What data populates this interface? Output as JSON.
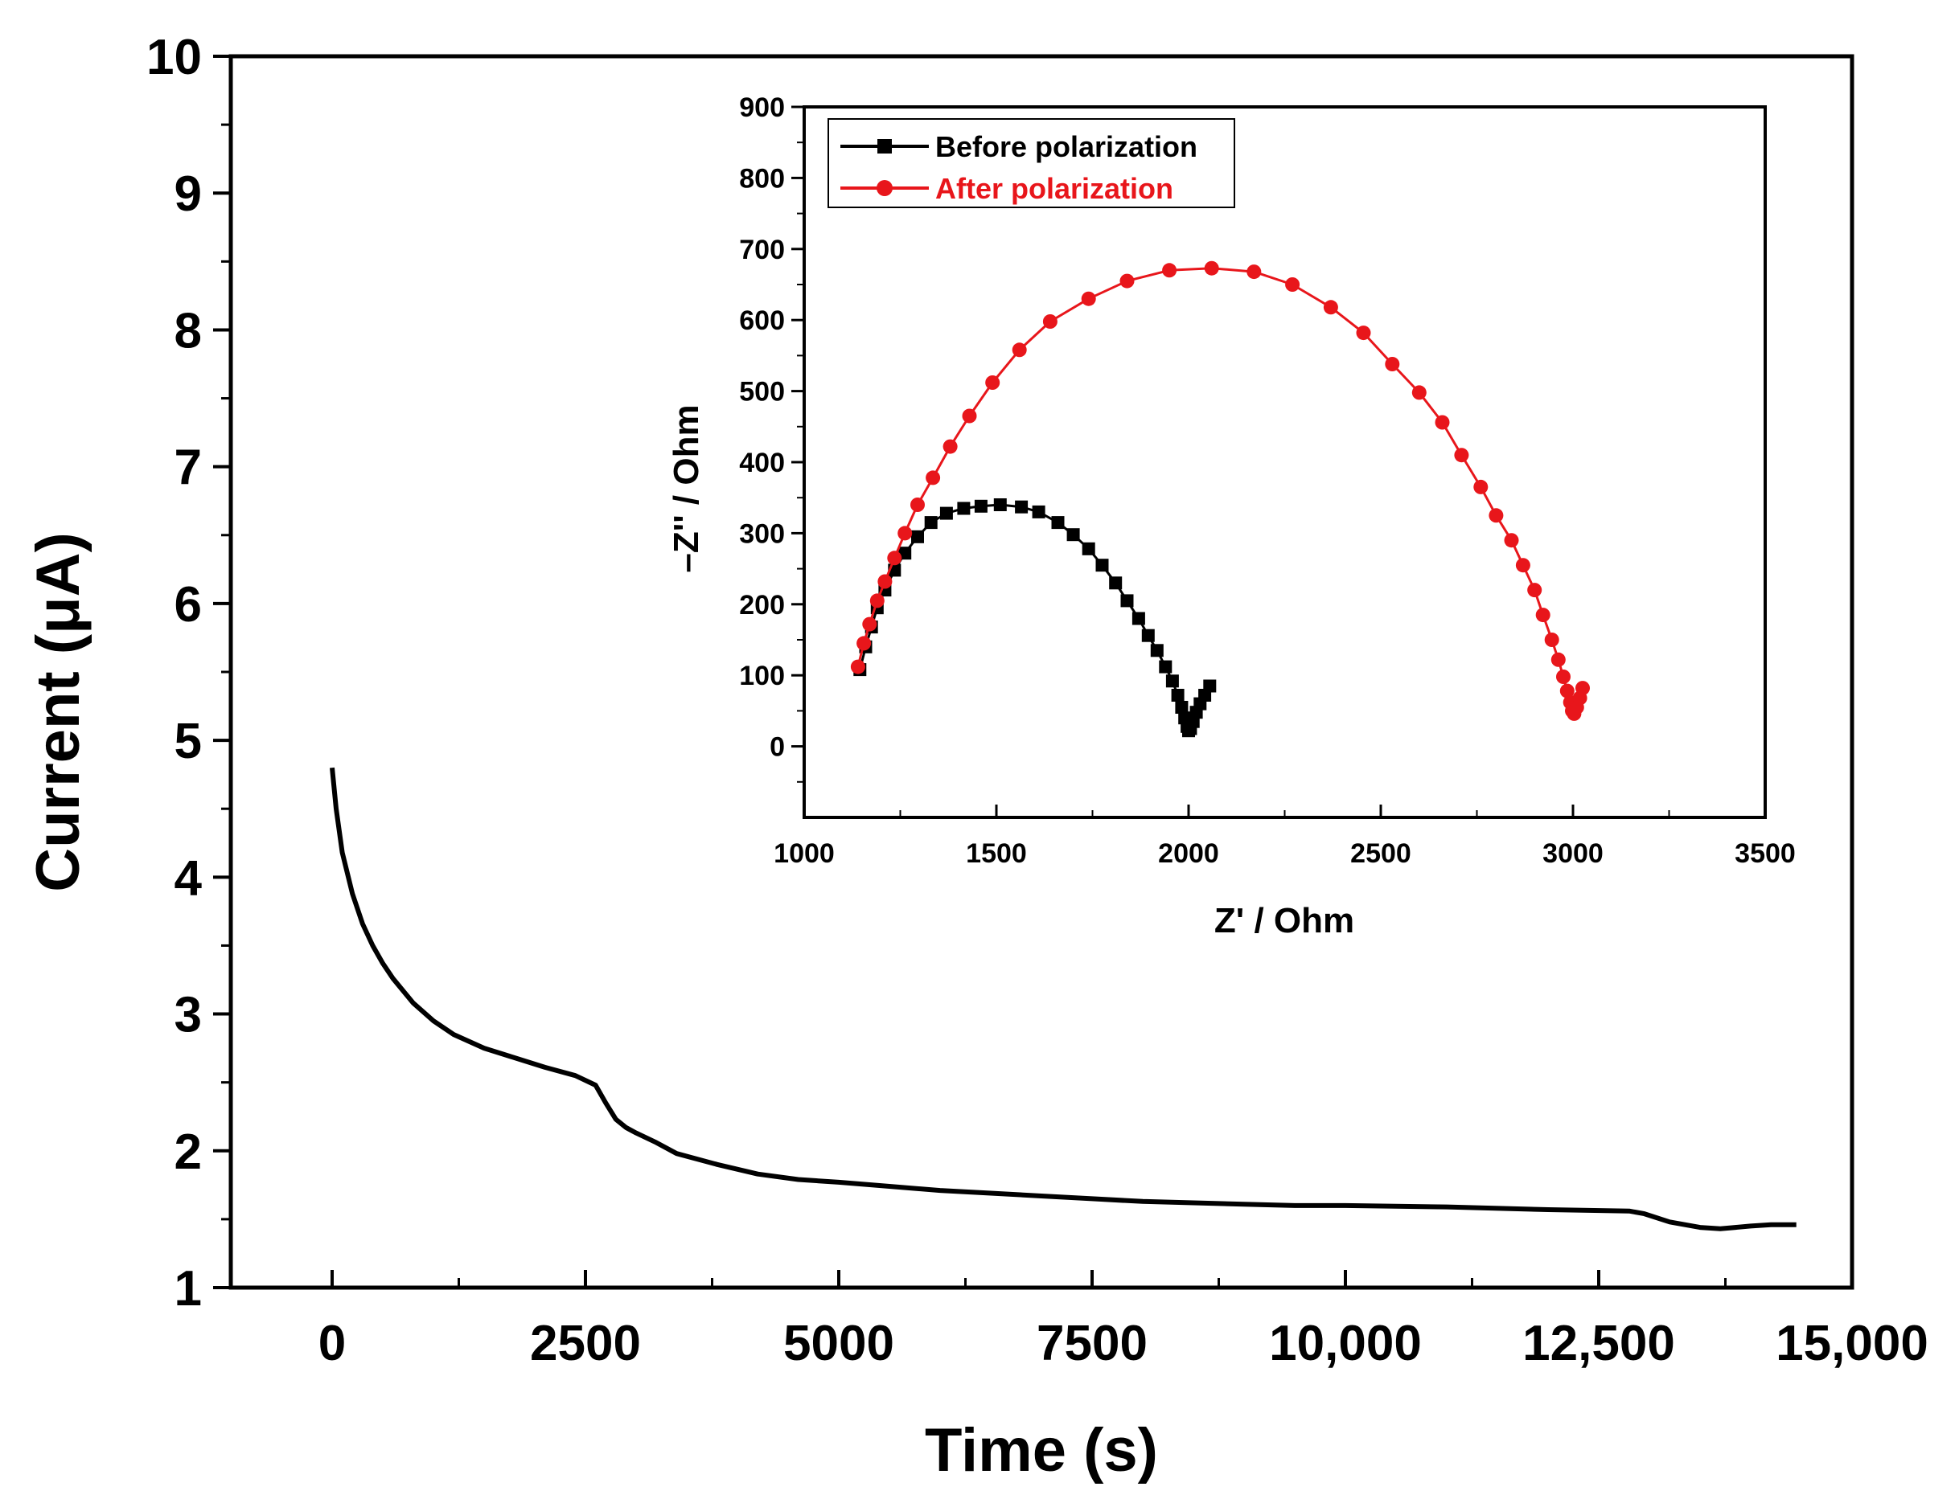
{
  "chart_data": [
    {
      "type": "line",
      "xlabel": "Time (s)",
      "ylabel": "Current (μA)",
      "xlim": [
        -1000,
        15000
      ],
      "ylim": [
        1,
        10
      ],
      "xticks": [
        0,
        2500,
        5000,
        7500,
        10000,
        12500,
        15000
      ],
      "xtick_labels": [
        "0",
        "2500",
        "5000",
        "7500",
        "10,000",
        "12,500",
        "15,000"
      ],
      "yticks": [
        1,
        2,
        3,
        4,
        5,
        6,
        7,
        8,
        9,
        10
      ],
      "ytick_labels": [
        "1",
        "2",
        "3",
        "4",
        "5",
        "6",
        "7",
        "8",
        "9",
        "10"
      ],
      "grid": false,
      "series": [
        {
          "color": "#000000",
          "x": [
            0,
            40,
            100,
            200,
            300,
            400,
            500,
            600,
            800,
            1000,
            1200,
            1500,
            1800,
            2100,
            2400,
            2600,
            2700,
            2800,
            2900,
            3000,
            3200,
            3400,
            3800,
            4200,
            4600,
            5000,
            5500,
            6000,
            6500,
            7000,
            7500,
            8000,
            8500,
            9000,
            9500,
            10000,
            11000,
            12000,
            12800,
            12950,
            13200,
            13500,
            13700,
            14000,
            14200,
            14450
          ],
          "y": [
            4.8,
            4.5,
            4.18,
            3.88,
            3.66,
            3.5,
            3.37,
            3.26,
            3.08,
            2.95,
            2.85,
            2.75,
            2.68,
            2.61,
            2.55,
            2.48,
            2.35,
            2.23,
            2.17,
            2.13,
            2.06,
            1.98,
            1.9,
            1.83,
            1.79,
            1.77,
            1.74,
            1.71,
            1.69,
            1.67,
            1.65,
            1.63,
            1.62,
            1.61,
            1.6,
            1.6,
            1.59,
            1.57,
            1.56,
            1.54,
            1.48,
            1.44,
            1.43,
            1.45,
            1.46,
            1.46
          ]
        }
      ]
    },
    {
      "type": "scatter",
      "xlabel": "Z' / Ohm",
      "ylabel": "–Z'' / Ohm",
      "xlim": [
        1000,
        3500
      ],
      "ylim": [
        -100,
        900
      ],
      "xticks": [
        1000,
        1500,
        2000,
        2500,
        3000,
        3500
      ],
      "yticks": [
        0,
        100,
        200,
        300,
        400,
        500,
        600,
        700,
        800,
        900
      ],
      "grid": false,
      "legend": "top-left",
      "series": [
        {
          "name": "Before polarization",
          "color": "#000000",
          "marker": "square",
          "x": [
            1145,
            1160,
            1175,
            1190,
            1210,
            1235,
            1262,
            1295,
            1330,
            1370,
            1415,
            1460,
            1510,
            1565,
            1610,
            1660,
            1700,
            1740,
            1775,
            1810,
            1840,
            1870,
            1895,
            1918,
            1940,
            1958,
            1972,
            1982,
            1990,
            1996,
            2000,
            2005,
            2012,
            2020,
            2030,
            2042,
            2055
          ],
          "y": [
            108,
            140,
            168,
            195,
            220,
            248,
            272,
            295,
            315,
            328,
            335,
            338,
            340,
            337,
            330,
            315,
            298,
            278,
            255,
            230,
            205,
            180,
            156,
            135,
            112,
            92,
            72,
            55,
            40,
            28,
            22,
            25,
            35,
            48,
            60,
            72,
            85
          ]
        },
        {
          "name": "After polarization",
          "color": "#e8161b",
          "marker": "circle",
          "x": [
            1140,
            1155,
            1170,
            1190,
            1210,
            1235,
            1262,
            1295,
            1335,
            1380,
            1430,
            1490,
            1560,
            1640,
            1740,
            1840,
            1950,
            2060,
            2170,
            2270,
            2370,
            2455,
            2530,
            2600,
            2660,
            2710,
            2760,
            2800,
            2840,
            2870,
            2900,
            2922,
            2945,
            2962,
            2975,
            2985,
            2993,
            2998,
            3003,
            3010,
            3018,
            3025
          ],
          "y": [
            112,
            145,
            172,
            205,
            232,
            265,
            300,
            340,
            378,
            422,
            465,
            512,
            558,
            598,
            630,
            655,
            670,
            673,
            668,
            650,
            618,
            582,
            538,
            498,
            456,
            410,
            365,
            325,
            290,
            255,
            220,
            185,
            150,
            122,
            98,
            78,
            62,
            50,
            46,
            55,
            68,
            82
          ]
        }
      ]
    }
  ]
}
